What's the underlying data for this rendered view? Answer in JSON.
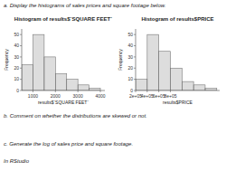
{
  "annotations": [
    "a. Display the histograms of sales prices and square footage below.",
    "b. Comment on whether the distributions are skewed or not.",
    "c. Generate the log of sales price and square footage.",
    "In RStudio"
  ],
  "chart_data": [
    {
      "type": "histogram",
      "title": "Histogram of results$`SQUARE FEET`",
      "x_label": "results$`SQUARE FEET`",
      "y_label": "Frequency",
      "bins": [
        500,
        1000,
        1500,
        2000,
        2500,
        3000,
        3500,
        4000
      ],
      "values": [
        23,
        50,
        30,
        15,
        10,
        5,
        2
      ],
      "color": "#777777",
      "xlim": [
        500,
        4200
      ],
      "xticks": [
        1000,
        2000,
        3000,
        4000
      ],
      "ylim": [
        0,
        55
      ],
      "yticks": [
        0,
        10,
        20,
        30,
        40,
        50
      ],
      "grid": false
    },
    {
      "type": "histogram",
      "title": "Histogram of results$PRICE",
      "x_label": "results$PRICE",
      "y_label": "Frequency",
      "bins": [
        200000,
        400000,
        600000,
        800000,
        1000000,
        1200000,
        1400000,
        1600000
      ],
      "values": [
        10,
        50,
        35,
        20,
        8,
        5,
        2
      ],
      "color": "#777777",
      "xlim": [
        200000,
        1650000
      ],
      "xticks": [
        {
          "value": 200000,
          "label": "2e+05"
        },
        {
          "value": 400000,
          "label": "4e+05"
        },
        {
          "value": 600000,
          "label": "6e+05"
        },
        {
          "value": 800000,
          "label": "8e+05"
        }
      ],
      "ylim": [
        0,
        55
      ],
      "yticks": [
        0,
        10,
        20,
        30,
        40,
        50
      ],
      "grid": false
    }
  ]
}
